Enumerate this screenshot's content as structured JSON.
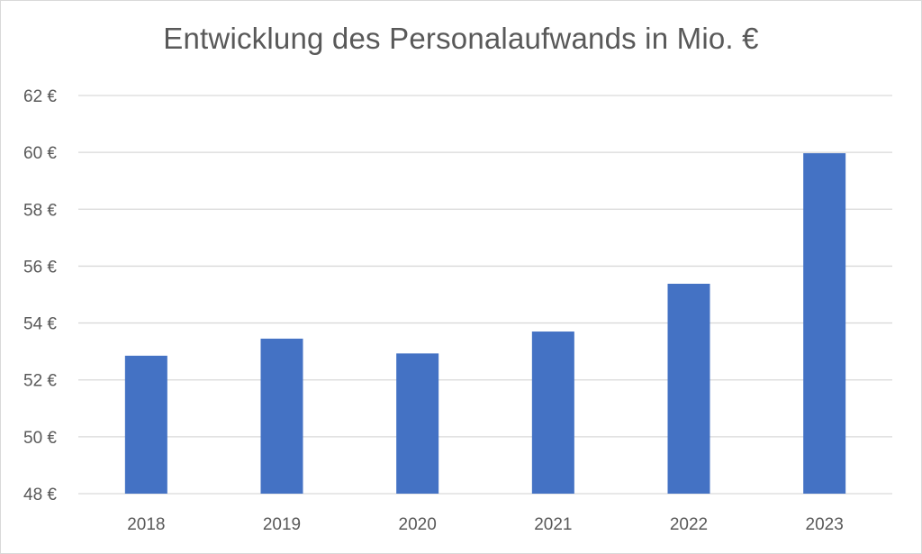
{
  "chart_data": {
    "type": "bar",
    "title": "Entwicklung des Personalaufwands in Mio. €",
    "xlabel": "",
    "ylabel": "",
    "categories": [
      "2018",
      "2019",
      "2020",
      "2021",
      "2022",
      "2023"
    ],
    "values": [
      52.85,
      53.45,
      52.93,
      53.7,
      55.38,
      59.97
    ],
    "ylim": [
      48,
      62
    ],
    "ytick_step": 2,
    "ytick_labels": [
      "48 €",
      "50 €",
      "52 €",
      "54 €",
      "56 €",
      "58 €",
      "60 €",
      "62 €"
    ],
    "grid": "horizontal",
    "legend": "none",
    "bar_color": "#4472c4",
    "grid_color": "#d9d9d9"
  }
}
